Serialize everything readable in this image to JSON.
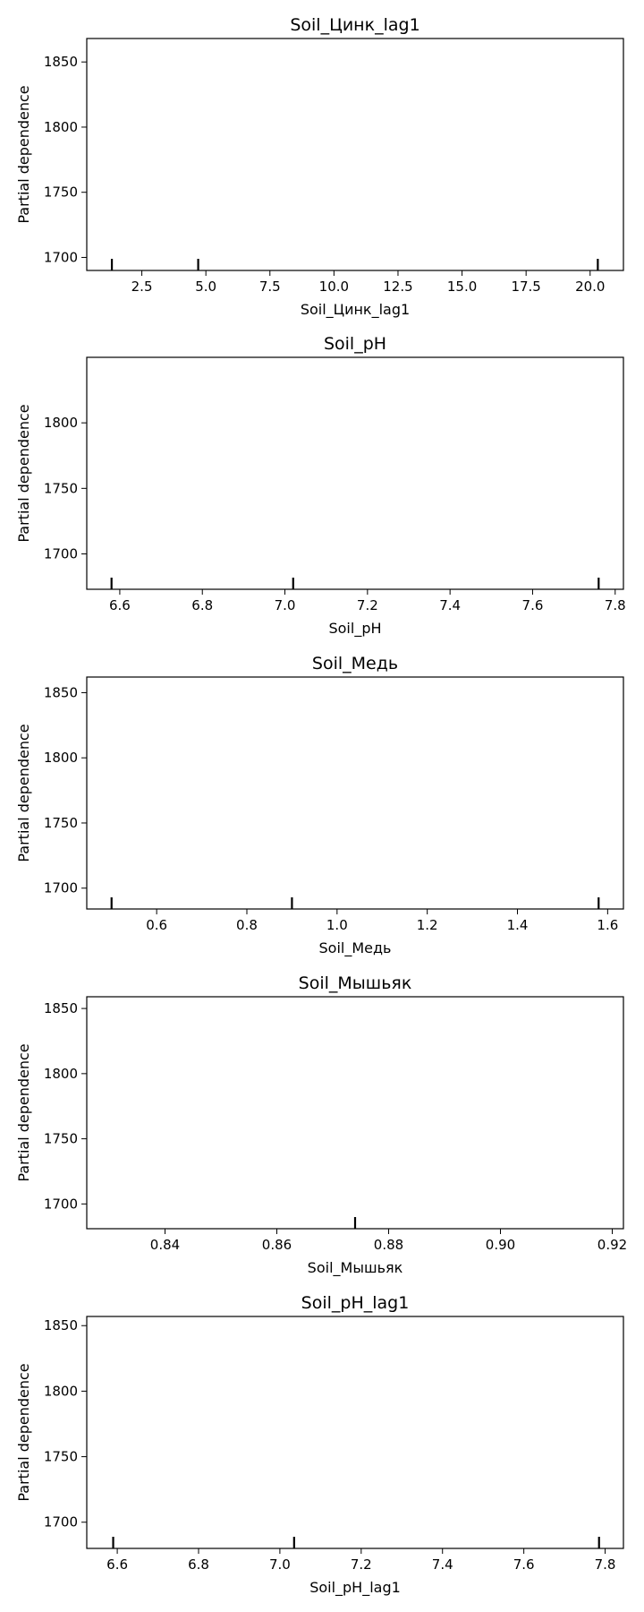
{
  "chart_data": [
    {
      "type": "line",
      "title": "Soil_Цинк_lag1",
      "xlabel": "Soil_Цинк_lag1",
      "ylabel": "Partial dependence",
      "xlim": [
        0.35,
        21.3
      ],
      "ylim": [
        1690,
        1868
      ],
      "xticks": [
        2.5,
        5.0,
        7.5,
        10.0,
        12.5,
        15.0,
        17.5,
        20.0
      ],
      "xticklabels": [
        "2.5",
        "5.0",
        "7.5",
        "10.0",
        "12.5",
        "15.0",
        "17.5",
        "20.0"
      ],
      "yticks": [
        1700,
        1750,
        1800,
        1850
      ],
      "yticklabels": [
        "1700",
        "1750",
        "1800",
        "1850"
      ],
      "deciles": [
        1.33,
        4.7,
        20.3
      ],
      "series": [],
      "grid": false
    },
    {
      "type": "line",
      "title": "Soil_pH",
      "xlabel": "Soil_pH",
      "ylabel": "Partial dependence",
      "xlim": [
        6.52,
        7.82
      ],
      "ylim": [
        1673,
        1850
      ],
      "xticks": [
        6.6,
        6.8,
        7.0,
        7.2,
        7.4,
        7.6,
        7.8
      ],
      "xticklabels": [
        "6.6",
        "6.8",
        "7.0",
        "7.2",
        "7.4",
        "7.6",
        "7.8"
      ],
      "yticks": [
        1700,
        1750,
        1800
      ],
      "yticklabels": [
        "1700",
        "1750",
        "1800"
      ],
      "deciles": [
        6.58,
        7.02,
        7.76
      ],
      "series": [],
      "grid": false
    },
    {
      "type": "line",
      "title": "Soil_Медь",
      "xlabel": "Soil_Медь",
      "ylabel": "Partial dependence",
      "xlim": [
        0.445,
        1.635
      ],
      "ylim": [
        1684,
        1862
      ],
      "xticks": [
        0.6,
        0.8,
        1.0,
        1.2,
        1.4,
        1.6
      ],
      "xticklabels": [
        "0.6",
        "0.8",
        "1.0",
        "1.2",
        "1.4",
        "1.6"
      ],
      "yticks": [
        1700,
        1750,
        1800,
        1850
      ],
      "yticklabels": [
        "1700",
        "1750",
        "1800",
        "1850"
      ],
      "deciles": [
        0.5,
        0.9,
        1.58
      ],
      "series": [],
      "grid": false
    },
    {
      "type": "line",
      "title": "Soil_Мышьяк",
      "xlabel": "Soil_Мышьяк",
      "ylabel": "Partial dependence",
      "xlim": [
        0.826,
        0.922
      ],
      "ylim": [
        1681,
        1859
      ],
      "xticks": [
        0.84,
        0.86,
        0.88,
        0.9,
        0.92
      ],
      "xticklabels": [
        "0.84",
        "0.86",
        "0.88",
        "0.90",
        "0.92"
      ],
      "yticks": [
        1700,
        1750,
        1800,
        1850
      ],
      "yticklabels": [
        "1700",
        "1750",
        "1800",
        "1850"
      ],
      "deciles": [
        0.874
      ],
      "series": [],
      "grid": false
    },
    {
      "type": "line",
      "title": "Soil_pH_lag1",
      "xlabel": "Soil_pH_lag1",
      "ylabel": "Partial dependence",
      "xlim": [
        6.525,
        7.845
      ],
      "ylim": [
        1680,
        1857
      ],
      "xticks": [
        6.6,
        6.8,
        7.0,
        7.2,
        7.4,
        7.6,
        7.8
      ],
      "xticklabels": [
        "6.6",
        "6.8",
        "7.0",
        "7.2",
        "7.4",
        "7.6",
        "7.8"
      ],
      "yticks": [
        1700,
        1750,
        1800,
        1850
      ],
      "yticklabels": [
        "1700",
        "1750",
        "1800",
        "1850"
      ],
      "deciles": [
        6.59,
        7.035,
        7.785
      ],
      "series": [],
      "grid": false
    }
  ]
}
